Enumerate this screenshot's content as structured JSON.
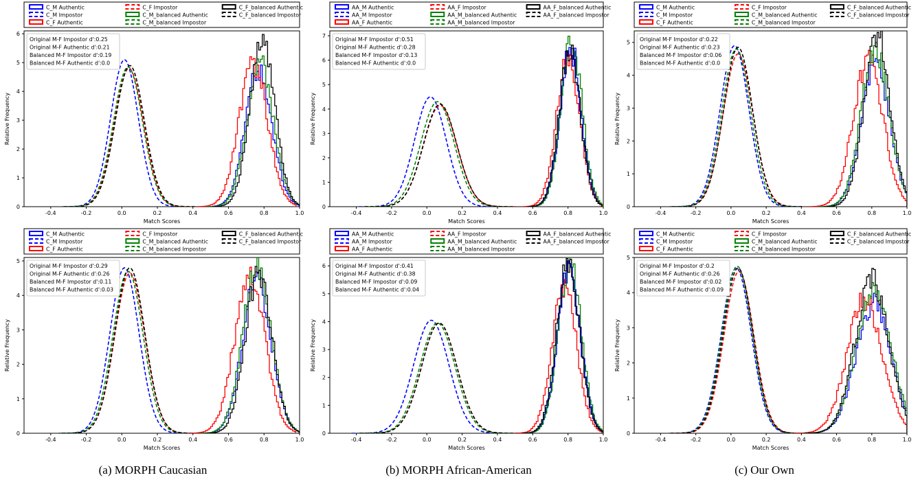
{
  "captions": [
    "(a) MORPH Caucasian",
    "(b) MORPH African-American",
    "(c) Our Own"
  ],
  "chart_data": [
    {
      "type": "line",
      "xlabel": "Match Scores",
      "ylabel": "Relative Frequency",
      "xlim": [
        -0.55,
        1.0
      ],
      "ylim": [
        0,
        6.1
      ],
      "xticks": [
        "-0.4",
        "-0.2",
        "0.0",
        "0.2",
        "0.4",
        "0.6",
        "0.8",
        "1.0"
      ],
      "yticks": [
        "0",
        "1",
        "2",
        "3",
        "4",
        "5",
        "6"
      ],
      "legend": [
        "C_M Authentic",
        "C_M Impostor",
        "C_F Authentic",
        "C_F Impostor",
        "C_M_balanced Authentic",
        "C_M_balanced Impostor",
        "C_F_balanced Authentic",
        "C_F_balanced Impostor"
      ],
      "annotations": [
        "Original M-F Impostor d':0.25",
        "Original M-F Authentic d':0.21",
        "Balanced M-F Impostor d':0.19",
        "Balanced M-F Authentic d':0.0"
      ],
      "series": [
        {
          "name": "C_M Impostor",
          "color": "#0000ff",
          "dashed": true,
          "mean": 0.015,
          "sd": 0.078,
          "peak": 5.1
        },
        {
          "name": "C_F Impostor",
          "color": "#ff0000",
          "dashed": true,
          "mean": 0.04,
          "sd": 0.082,
          "peak": 4.8
        },
        {
          "name": "C_M_balanced Impostor",
          "color": "#008000",
          "dashed": true,
          "mean": 0.035,
          "sd": 0.082,
          "peak": 4.85
        },
        {
          "name": "C_F_balanced Impostor",
          "color": "#000000",
          "dashed": true,
          "mean": 0.045,
          "sd": 0.082,
          "peak": 4.9
        },
        {
          "name": "C_M Authentic",
          "color": "#0000ff",
          "dashed": false,
          "mean": 0.77,
          "sd": 0.075,
          "peak": 4.8
        },
        {
          "name": "C_F Authentic",
          "color": "#ff0000",
          "dashed": false,
          "mean": 0.74,
          "sd": 0.08,
          "peak": 5.0
        },
        {
          "name": "C_M_balanced Authentic",
          "color": "#008000",
          "dashed": false,
          "mean": 0.78,
          "sd": 0.075,
          "peak": 4.9
        },
        {
          "name": "C_F_balanced Authentic",
          "color": "#000000",
          "dashed": false,
          "mean": 0.79,
          "sd": 0.07,
          "peak": 5.9
        }
      ]
    },
    {
      "type": "line",
      "xlabel": "Match Scores",
      "ylabel": "Relative Frequency",
      "xlim": [
        -0.55,
        1.0
      ],
      "ylim": [
        0,
        7.2
      ],
      "xticks": [
        "-0.4",
        "-0.2",
        "0.0",
        "0.2",
        "0.4",
        "0.6",
        "0.8",
        "1.0"
      ],
      "yticks": [
        "0",
        "1",
        "2",
        "3",
        "4",
        "5",
        "6",
        "7"
      ],
      "legend": [
        "AA_M Authentic",
        "AA_M Impostor",
        "AA_F Authentic",
        "AA_F Impostor",
        "AA_M_balanced Authentic",
        "AA_M_balanced Impostor",
        "AA_F_balanced Authentic",
        "AA_F_balanced Impostor"
      ],
      "annotations": [
        "Original M-F Impostor d':0.51",
        "Original M-F Authentic d':0.28",
        "Balanced M-F Impostor d':0.13",
        "Balanced M-F Authentic d':0.0"
      ],
      "series": [
        {
          "name": "AA_M Impostor",
          "color": "#0000ff",
          "dashed": true,
          "mean": 0.02,
          "sd": 0.09,
          "peak": 4.5
        },
        {
          "name": "AA_F Impostor",
          "color": "#ff0000",
          "dashed": true,
          "mean": 0.075,
          "sd": 0.095,
          "peak": 4.15
        },
        {
          "name": "AA_M_balanced Impostor",
          "color": "#008000",
          "dashed": true,
          "mean": 0.06,
          "sd": 0.095,
          "peak": 4.3
        },
        {
          "name": "AA_F_balanced Impostor",
          "color": "#000000",
          "dashed": true,
          "mean": 0.075,
          "sd": 0.095,
          "peak": 4.2
        },
        {
          "name": "AA_M Authentic",
          "color": "#0000ff",
          "dashed": false,
          "mean": 0.815,
          "sd": 0.06,
          "peak": 6.5
        },
        {
          "name": "AA_F Authentic",
          "color": "#ff0000",
          "dashed": false,
          "mean": 0.8,
          "sd": 0.065,
          "peak": 6.0
        },
        {
          "name": "AA_M_balanced Authentic",
          "color": "#008000",
          "dashed": false,
          "mean": 0.82,
          "sd": 0.06,
          "peak": 7.0
        },
        {
          "name": "AA_F_balanced Authentic",
          "color": "#000000",
          "dashed": false,
          "mean": 0.81,
          "sd": 0.06,
          "peak": 6.3
        }
      ]
    },
    {
      "type": "line",
      "xlabel": "Match Scores",
      "ylabel": "Relative Frequency",
      "xlim": [
        -0.55,
        1.0
      ],
      "ylim": [
        0,
        5.35
      ],
      "xticks": [
        "-0.4",
        "-0.2",
        "0.0",
        "0.2",
        "0.4",
        "0.6",
        "0.8",
        "1.0"
      ],
      "yticks": [
        "0",
        "1",
        "2",
        "3",
        "4",
        "5"
      ],
      "legend": [
        "C_M Authentic",
        "C_M Impostor",
        "C_F Authentic",
        "C_F Impostor",
        "C_M_balanced Authentic",
        "C_M_balanced Impostor",
        "C_F_balanced Authentic",
        "C_F_balanced Impostor"
      ],
      "annotations": [
        "Original M-F Impostor d':0.22",
        "Original M-F Authentic d':0.23",
        "Balanced M-F Impostor d':0.06",
        "Balanced M-F Authentic d':0.0"
      ],
      "series": [
        {
          "name": "C_M Impostor",
          "color": "#0000ff",
          "dashed": true,
          "mean": 0.02,
          "sd": 0.082,
          "peak": 4.9
        },
        {
          "name": "C_F Impostor",
          "color": "#ff0000",
          "dashed": true,
          "mean": 0.04,
          "sd": 0.085,
          "peak": 4.65
        },
        {
          "name": "C_M_balanced Impostor",
          "color": "#008000",
          "dashed": true,
          "mean": 0.03,
          "sd": 0.083,
          "peak": 4.8
        },
        {
          "name": "C_F_balanced Impostor",
          "color": "#000000",
          "dashed": true,
          "mean": 0.04,
          "sd": 0.083,
          "peak": 4.85
        },
        {
          "name": "C_M Authentic",
          "color": "#0000ff",
          "dashed": false,
          "mean": 0.82,
          "sd": 0.08,
          "peak": 4.4
        },
        {
          "name": "C_F Authentic",
          "color": "#ff0000",
          "dashed": false,
          "mean": 0.78,
          "sd": 0.085,
          "peak": 4.5
        },
        {
          "name": "C_M_balanced Authentic",
          "color": "#008000",
          "dashed": false,
          "mean": 0.82,
          "sd": 0.08,
          "peak": 4.8
        },
        {
          "name": "C_F_balanced Authentic",
          "color": "#000000",
          "dashed": false,
          "mean": 0.83,
          "sd": 0.075,
          "peak": 5.2
        }
      ]
    },
    {
      "type": "line",
      "xlabel": "Match Scores",
      "ylabel": "Relative Frequency",
      "xlim": [
        -0.55,
        1.0
      ],
      "ylim": [
        0,
        5.1
      ],
      "xticks": [
        "-0.4",
        "-0.2",
        "0.0",
        "0.2",
        "0.4",
        "0.6",
        "0.8",
        "1.0"
      ],
      "yticks": [
        "0",
        "1",
        "2",
        "3",
        "4",
        "5"
      ],
      "legend": [
        "C_M Authentic",
        "C_M Impostor",
        "C_F Authentic",
        "C_F Impostor",
        "C_M_balanced Authentic",
        "C_M_balanced Impostor",
        "C_F_balanced Authentic",
        "C_F_balanced Impostor"
      ],
      "annotations": [
        "Original M-F Impostor d':0.29",
        "Original M-F Authentic d':0.26",
        "Balanced M-F Impostor d':0.11",
        "Balanced M-F Authentic d':0.03"
      ],
      "series": [
        {
          "name": "C_M Impostor",
          "color": "#0000ff",
          "dashed": true,
          "mean": 0.015,
          "sd": 0.082,
          "peak": 4.8
        },
        {
          "name": "C_F Impostor",
          "color": "#ff0000",
          "dashed": true,
          "mean": 0.045,
          "sd": 0.085,
          "peak": 4.65
        },
        {
          "name": "C_M_balanced Impostor",
          "color": "#008000",
          "dashed": true,
          "mean": 0.035,
          "sd": 0.085,
          "peak": 4.7
        },
        {
          "name": "C_F_balanced Impostor",
          "color": "#000000",
          "dashed": true,
          "mean": 0.045,
          "sd": 0.085,
          "peak": 4.8
        },
        {
          "name": "C_M Authentic",
          "color": "#0000ff",
          "dashed": false,
          "mean": 0.76,
          "sd": 0.08,
          "peak": 4.5
        },
        {
          "name": "C_F Authentic",
          "color": "#ff0000",
          "dashed": false,
          "mean": 0.72,
          "sd": 0.085,
          "peak": 4.6
        },
        {
          "name": "C_M_balanced Authentic",
          "color": "#008000",
          "dashed": false,
          "mean": 0.76,
          "sd": 0.08,
          "peak": 4.9
        },
        {
          "name": "C_F_balanced Authentic",
          "color": "#000000",
          "dashed": false,
          "mean": 0.77,
          "sd": 0.075,
          "peak": 4.7
        }
      ]
    },
    {
      "type": "line",
      "xlabel": "Match Scores",
      "ylabel": "Relative Frequency",
      "xlim": [
        -0.55,
        1.0
      ],
      "ylim": [
        0,
        6.3
      ],
      "xticks": [
        "-0.4",
        "-0.2",
        "0.0",
        "0.2",
        "0.4",
        "0.6",
        "0.8",
        "1.0"
      ],
      "yticks": [
        "0",
        "1",
        "2",
        "3",
        "4",
        "5",
        "6"
      ],
      "legend": [
        "AA_M Authentic",
        "AA_M Impostor",
        "AA_F Authentic",
        "AA_F Impostor",
        "AA_M_balanced Authentic",
        "AA_M_balanced Impostor",
        "AA_F_balanced Authentic",
        "AA_F_balanced Impostor"
      ],
      "annotations": [
        "Original M-F Impostor d':0.41",
        "Original M-F Authentic d':0.38",
        "Balanced M-F Impostor d':0.09",
        "Balanced M-F Authentic d':0.04"
      ],
      "series": [
        {
          "name": "AA_M Impostor",
          "color": "#0000ff",
          "dashed": true,
          "mean": 0.025,
          "sd": 0.1,
          "peak": 4.05
        },
        {
          "name": "AA_F Impostor",
          "color": "#ff0000",
          "dashed": true,
          "mean": 0.07,
          "sd": 0.1,
          "peak": 3.95
        },
        {
          "name": "AA_M_balanced Impostor",
          "color": "#008000",
          "dashed": true,
          "mean": 0.06,
          "sd": 0.1,
          "peak": 3.95
        },
        {
          "name": "AA_F_balanced Impostor",
          "color": "#000000",
          "dashed": true,
          "mean": 0.07,
          "sd": 0.1,
          "peak": 3.95
        },
        {
          "name": "AA_M Authentic",
          "color": "#0000ff",
          "dashed": false,
          "mean": 0.805,
          "sd": 0.065,
          "peak": 5.8
        },
        {
          "name": "AA_F Authentic",
          "color": "#ff0000",
          "dashed": false,
          "mean": 0.78,
          "sd": 0.07,
          "peak": 5.2
        },
        {
          "name": "AA_M_balanced Authentic",
          "color": "#008000",
          "dashed": false,
          "mean": 0.81,
          "sd": 0.065,
          "peak": 6.1
        },
        {
          "name": "AA_F_balanced Authentic",
          "color": "#000000",
          "dashed": false,
          "mean": 0.8,
          "sd": 0.065,
          "peak": 6.0
        }
      ]
    },
    {
      "type": "line",
      "xlabel": "Match Scores",
      "ylabel": "Relative Frequency",
      "xlim": [
        -0.55,
        1.0
      ],
      "ylim": [
        0,
        5.0
      ],
      "xticks": [
        "-0.4",
        "-0.2",
        "0.0",
        "0.2",
        "0.4",
        "0.6",
        "0.8",
        "1.0"
      ],
      "yticks": [
        "0",
        "1",
        "2",
        "3",
        "4",
        "5"
      ],
      "legend": [
        "C_M Authentic",
        "C_M Impostor",
        "C_F Authentic",
        "C_F Impostor",
        "C_M_balanced Authentic",
        "C_M_balanced Impostor",
        "C_F_balanced Authentic",
        "C_F_balanced Impostor"
      ],
      "annotations": [
        "Original M-F Impostor d':0.2",
        "Original M-F Authentic d':0.26",
        "Balanced M-F Impostor d':0.02",
        "Balanced M-F Authentic d':0.09"
      ],
      "series": [
        {
          "name": "C_M Impostor",
          "color": "#0000ff",
          "dashed": true,
          "mean": 0.03,
          "sd": 0.085,
          "peak": 4.7
        },
        {
          "name": "C_F Impostor",
          "color": "#ff0000",
          "dashed": true,
          "mean": 0.045,
          "sd": 0.085,
          "peak": 4.6
        },
        {
          "name": "C_M_balanced Impostor",
          "color": "#008000",
          "dashed": true,
          "mean": 0.035,
          "sd": 0.085,
          "peak": 4.75
        },
        {
          "name": "C_F_balanced Impostor",
          "color": "#000000",
          "dashed": true,
          "mean": 0.04,
          "sd": 0.085,
          "peak": 4.7
        },
        {
          "name": "C_M Authentic",
          "color": "#0000ff",
          "dashed": false,
          "mean": 0.81,
          "sd": 0.1,
          "peak": 3.7
        },
        {
          "name": "C_F Authentic",
          "color": "#ff0000",
          "dashed": false,
          "mean": 0.76,
          "sd": 0.1,
          "peak": 3.8
        },
        {
          "name": "C_M_balanced Authentic",
          "color": "#008000",
          "dashed": false,
          "mean": 0.81,
          "sd": 0.1,
          "peak": 4.1
        },
        {
          "name": "C_F_balanced Authentic",
          "color": "#000000",
          "dashed": false,
          "mean": 0.8,
          "sd": 0.095,
          "peak": 4.4
        }
      ]
    }
  ]
}
